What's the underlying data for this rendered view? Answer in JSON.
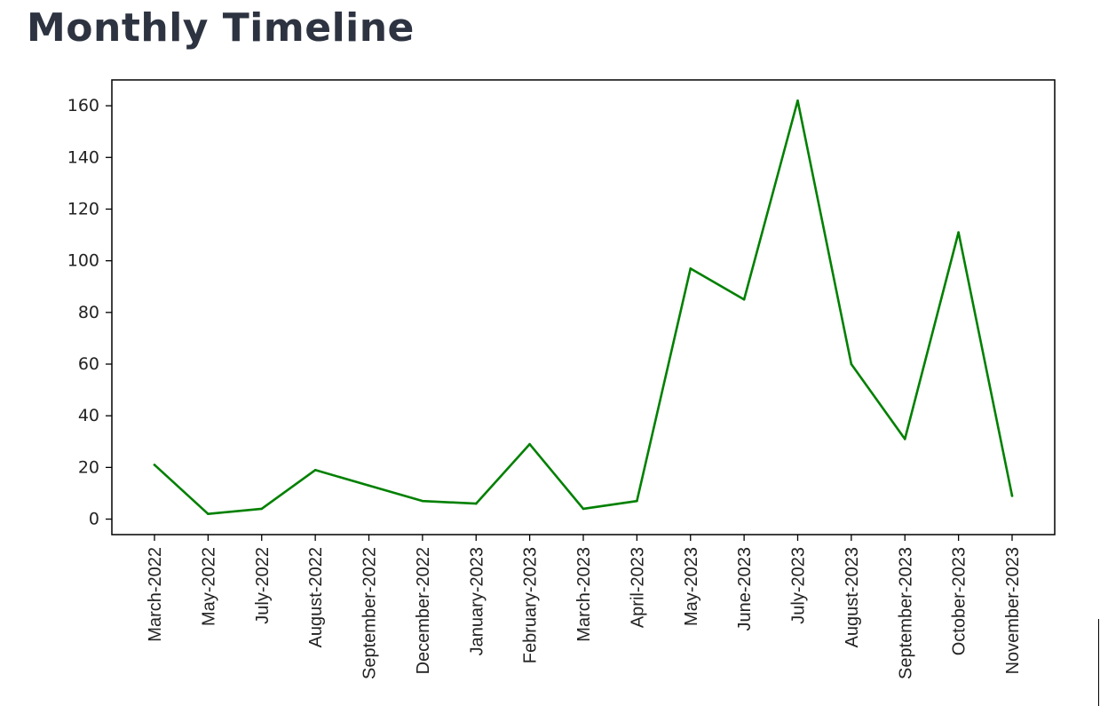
{
  "page": {
    "title": "Monthly Timeline"
  },
  "chart_data": {
    "type": "line",
    "title": "",
    "xlabel": "",
    "ylabel": "",
    "categories": [
      "March-2022",
      "May-2022",
      "July-2022",
      "August-2022",
      "September-2022",
      "December-2022",
      "January-2023",
      "February-2023",
      "March-2023",
      "April-2023",
      "May-2023",
      "June-2023",
      "July-2023",
      "August-2023",
      "September-2023",
      "October-2023",
      "November-2023"
    ],
    "series": [
      {
        "color": "#008000",
        "values": [
          21,
          2,
          4,
          19,
          13,
          7,
          6,
          29,
          4,
          7,
          97,
          85,
          162,
          60,
          31,
          111,
          9
        ]
      }
    ],
    "ylim": [
      -6,
      170
    ],
    "yticks": [
      0,
      20,
      40,
      60,
      80,
      100,
      120,
      140,
      160
    ],
    "grid": false,
    "legend": "none"
  }
}
